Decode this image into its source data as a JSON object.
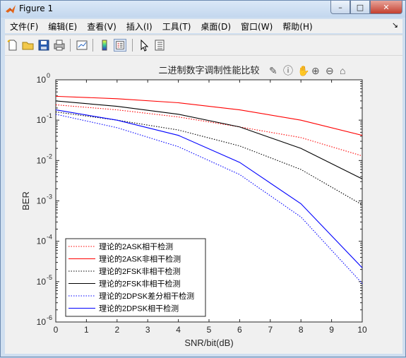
{
  "window": {
    "title": "Figure 1",
    "controls": {
      "minimize": "–",
      "maximize": "□",
      "close": "✕"
    }
  },
  "menu": [
    {
      "label": "文件(F)"
    },
    {
      "label": "编辑(E)"
    },
    {
      "label": "查看(V)"
    },
    {
      "label": "插入(I)"
    },
    {
      "label": "工具(T)"
    },
    {
      "label": "桌面(D)"
    },
    {
      "label": "窗口(W)"
    },
    {
      "label": "帮助(H)"
    }
  ],
  "menu_corner": "↘",
  "toolbar_icons": [
    "new-figure-icon",
    "open-file-icon",
    "save-icon",
    "print-icon",
    "link-plot-icon",
    "insert-colorbar-icon",
    "insert-legend-icon",
    "edit-plot-arrow-icon",
    "property-inspector-icon"
  ],
  "axes_toolbar_icons": [
    "brush-icon",
    "data-tips-icon",
    "pan-icon",
    "zoom-in-icon",
    "zoom-out-icon",
    "home-icon"
  ],
  "colors": {
    "red": "#ff0000",
    "black": "#000000",
    "blue": "#0000ff"
  },
  "chart_data": {
    "type": "line",
    "title": "二进制数字调制性能比较",
    "xlabel": "SNR/bit(dB)",
    "ylabel": "BER",
    "xlim": [
      0,
      10
    ],
    "ylim": [
      1e-06,
      1
    ],
    "yscale": "log",
    "xticks": [
      "0",
      "1",
      "2",
      "3",
      "4",
      "5",
      "6",
      "7",
      "8",
      "9",
      "10"
    ],
    "yticks": [
      {
        "base": "10",
        "exp": "0",
        "value": 1
      },
      {
        "base": "10",
        "exp": "-1",
        "value": 0.1
      },
      {
        "base": "10",
        "exp": "-2",
        "value": 0.01
      },
      {
        "base": "10",
        "exp": "-3",
        "value": 0.001
      },
      {
        "base": "10",
        "exp": "-4",
        "value": 0.0001
      },
      {
        "base": "10",
        "exp": "-5",
        "value": 1e-05
      },
      {
        "base": "10",
        "exp": "-6",
        "value": 1e-06
      }
    ],
    "legend_position": "bottom-left",
    "series": [
      {
        "name": "理论的2ASK相干检测",
        "color": "#ff0000",
        "style": "dotted",
        "x": [
          0,
          2,
          4,
          6,
          8,
          10
        ],
        "y": [
          0.24,
          0.18,
          0.12,
          0.068,
          0.037,
          0.013
        ]
      },
      {
        "name": "理论的2ASK非相干检测",
        "color": "#ff0000",
        "style": "solid",
        "x": [
          0,
          2,
          4,
          6,
          8,
          10
        ],
        "y": [
          0.39,
          0.34,
          0.27,
          0.18,
          0.1,
          0.042
        ]
      },
      {
        "name": "理论的2FSK非相干检测",
        "color": "#000000",
        "style": "dotted",
        "x": [
          0,
          2,
          4,
          6,
          8,
          10
        ],
        "y": [
          0.16,
          0.1,
          0.057,
          0.023,
          0.006,
          0.0008
        ]
      },
      {
        "name": "理论的2FSK非相干检测",
        "color": "#000000",
        "style": "solid",
        "x": [
          0,
          2,
          4,
          6,
          8,
          10
        ],
        "y": [
          0.3,
          0.22,
          0.14,
          0.068,
          0.02,
          0.0035
        ]
      },
      {
        "name": "理论的2DPSK差分相干检测",
        "color": "#0000ff",
        "style": "dotted",
        "x": [
          0,
          2,
          4,
          6,
          8,
          10
        ],
        "y": [
          0.14,
          0.065,
          0.022,
          0.0045,
          0.0004,
          9e-06
        ]
      },
      {
        "name": "理论的2DPSK相干检测",
        "color": "#0000ff",
        "style": "solid",
        "x": [
          0,
          2,
          4,
          6,
          8,
          10
        ],
        "y": [
          0.18,
          0.1,
          0.042,
          0.009,
          0.00085,
          2.2e-05
        ]
      }
    ]
  }
}
